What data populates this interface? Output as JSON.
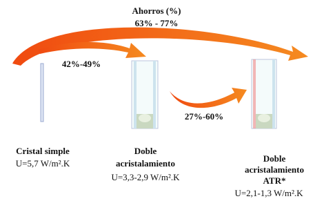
{
  "header": {
    "title": "Ahorros (%)",
    "range": "63% - 77%"
  },
  "arrows": [
    {
      "label": "42%-49%"
    },
    {
      "label": "27%-60%"
    }
  ],
  "nodes": [
    {
      "lines": [
        "Cristal simple"
      ],
      "u_value": "U=5,7 W/m².K"
    },
    {
      "lines": [
        "Doble",
        "acristalamiento"
      ],
      "u_value": "U=3,3-2,9 W/m².K"
    },
    {
      "lines": [
        "Doble",
        "acristalamiento",
        "ATR*"
      ],
      "u_value": "U=2,1-1,3 W/m².K"
    }
  ]
}
